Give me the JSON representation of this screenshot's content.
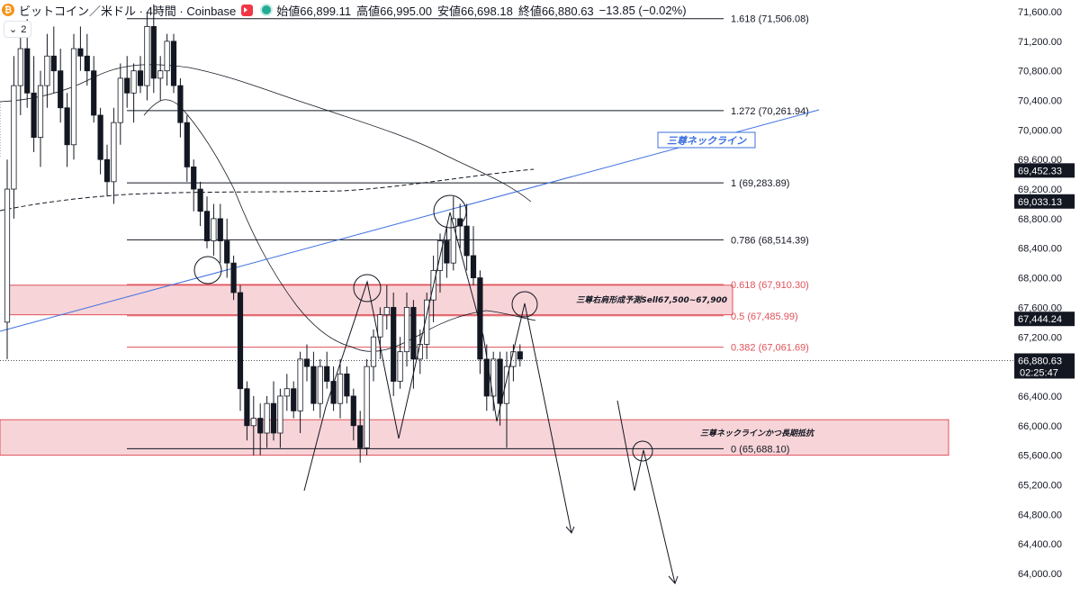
{
  "header": {
    "symbol": "ビットコイン／米ドル · 4時間 · Coinbase",
    "open": "始値66,899.11",
    "high": "高値66,995.00",
    "low": "安値66,698.18",
    "close": "終値66,880.63",
    "change": "−13.85 (−0.02%)",
    "indicator_count": "2"
  },
  "price_axis": {
    "ticks": [
      "71,600.00",
      "71,200.00",
      "70,800.00",
      "70,400.00",
      "70,000.00",
      "69,600.00",
      "69,200.00",
      "68,800.00",
      "68,400.00",
      "68,000.00",
      "67,600.00",
      "67,200.00",
      "66,400.00",
      "66,000.00",
      "65,600.00",
      "65,200.00",
      "64,800.00",
      "64,400.00",
      "64,000.00"
    ],
    "badges": [
      {
        "price": 69452.33,
        "label": "69,452.33"
      },
      {
        "price": 69033.13,
        "label": "69,033.13"
      },
      {
        "price": 67444.24,
        "label": "67,444.24"
      }
    ],
    "last_price": {
      "price": 66880.63,
      "label": "66,880.63",
      "countdown": "02:25:47"
    }
  },
  "fib_levels": [
    {
      "price": 71506.08,
      "label": "1.618 (71,506.08)",
      "color": "#131722"
    },
    {
      "price": 70261.94,
      "label": "1.272 (70,261.94)",
      "color": "#131722"
    },
    {
      "price": 69283.89,
      "label": "1 (69,283.89)",
      "color": "#131722"
    },
    {
      "price": 68514.39,
      "label": "0.786 (68,514.39)",
      "color": "#131722"
    },
    {
      "price": 67910.3,
      "label": "0.618 (67,910.30)",
      "color": "#e0525a"
    },
    {
      "price": 67485.99,
      "label": "0.5 (67,485.99)",
      "color": "#e0525a"
    },
    {
      "price": 67061.69,
      "label": "0.382 (67,061.69)",
      "color": "#e0525a"
    },
    {
      "price": 65688.1,
      "label": "0 (65,688.10)",
      "color": "#131722"
    }
  ],
  "zones": [
    {
      "top": 67900,
      "bottom": 67500,
      "label": "三尊右肩形成予測Sell67,500~67,900"
    },
    {
      "top": 66080,
      "bottom": 65600,
      "label": "三尊ネックラインかつ長期抵抗"
    }
  ],
  "neckline_label": "三尊ネックライン",
  "colors": {
    "up": "#ffffff",
    "down": "#131722",
    "neckline": "#3d6fe0",
    "zone_fill": "#f7d4d8",
    "zone_border": "#e0525a"
  },
  "chart_data": {
    "type": "candlestick",
    "title": "ビットコイン／米ドル · 4時間 · Coinbase",
    "ylim": [
      63930,
      71720
    ],
    "candles": [
      [
        67400,
        69600,
        66900,
        69200
      ],
      [
        69200,
        71000,
        68800,
        70600
      ],
      [
        70600,
        71400,
        70200,
        71100
      ],
      [
        71100,
        71500,
        70300,
        70500
      ],
      [
        70500,
        71000,
        69700,
        69900
      ],
      [
        69900,
        70800,
        69500,
        70600
      ],
      [
        70600,
        71300,
        70300,
        71000
      ],
      [
        71000,
        71400,
        70500,
        70800
      ],
      [
        70800,
        71100,
        70100,
        70300
      ],
      [
        70300,
        70500,
        69500,
        69800
      ],
      [
        69800,
        71300,
        69600,
        71100
      ],
      [
        71100,
        71400,
        70800,
        71000
      ],
      [
        71000,
        71300,
        70600,
        70800
      ],
      [
        70800,
        71000,
        70100,
        70200
      ],
      [
        70200,
        70300,
        69400,
        69600
      ],
      [
        69600,
        69800,
        69100,
        69300
      ],
      [
        69300,
        70300,
        69000,
        70100
      ],
      [
        70100,
        70900,
        69800,
        70700
      ],
      [
        70700,
        71000,
        70300,
        70500
      ],
      [
        70500,
        70900,
        70100,
        70800
      ],
      [
        70800,
        71000,
        70500,
        70600
      ],
      [
        70600,
        71600,
        70400,
        71400
      ],
      [
        71400,
        71700,
        70500,
        70700
      ],
      [
        70700,
        71000,
        70400,
        70800
      ],
      [
        70800,
        71300,
        70600,
        71200
      ],
      [
        71200,
        71300,
        70500,
        70600
      ],
      [
        70600,
        70700,
        69900,
        70100
      ],
      [
        70100,
        70200,
        69300,
        69500
      ],
      [
        69500,
        69600,
        68900,
        69200
      ],
      [
        69200,
        69300,
        68700,
        68900
      ],
      [
        68900,
        69100,
        68400,
        68500
      ],
      [
        68500,
        69000,
        68300,
        68800
      ],
      [
        68800,
        69000,
        68200,
        68500
      ],
      [
        68500,
        68800,
        68000,
        68200
      ],
      [
        68200,
        68300,
        67700,
        67800
      ],
      [
        67800,
        67900,
        66200,
        66500
      ],
      [
        66500,
        66600,
        65800,
        66000
      ],
      [
        66000,
        66400,
        65600,
        66100
      ],
      [
        66100,
        66300,
        65600,
        65900
      ],
      [
        65900,
        66400,
        65700,
        66300
      ],
      [
        66300,
        66600,
        65800,
        65900
      ],
      [
        65900,
        66500,
        65700,
        66400
      ],
      [
        66400,
        66700,
        66200,
        66500
      ],
      [
        66500,
        66600,
        66100,
        66200
      ],
      [
        66200,
        67000,
        65900,
        66900
      ],
      [
        66900,
        67100,
        66600,
        66800
      ],
      [
        66800,
        67000,
        66200,
        66300
      ],
      [
        66300,
        66900,
        66100,
        66800
      ],
      [
        66800,
        67000,
        66500,
        66600
      ],
      [
        66600,
        66800,
        66200,
        66300
      ],
      [
        66300,
        66900,
        66100,
        66700
      ],
      [
        66700,
        66800,
        66300,
        66400
      ],
      [
        66400,
        66500,
        65800,
        66000
      ],
      [
        66000,
        66200,
        65500,
        65700
      ],
      [
        65700,
        66900,
        65600,
        66800
      ],
      [
        66800,
        67300,
        66600,
        67200
      ],
      [
        67200,
        67600,
        66900,
        67500
      ],
      [
        67500,
        67900,
        67300,
        67600
      ],
      [
        67600,
        67800,
        66400,
        66600
      ],
      [
        66600,
        67200,
        66500,
        67000
      ],
      [
        67000,
        67800,
        66800,
        67600
      ],
      [
        67600,
        67700,
        66500,
        66900
      ],
      [
        66900,
        67300,
        66700,
        67100
      ],
      [
        67100,
        67800,
        66900,
        67700
      ],
      [
        67700,
        68300,
        67400,
        68100
      ],
      [
        68100,
        68600,
        67800,
        68500
      ],
      [
        68500,
        68700,
        68000,
        68200
      ],
      [
        68200,
        69100,
        68100,
        68800
      ],
      [
        68800,
        69000,
        68400,
        68700
      ],
      [
        68700,
        69000,
        68100,
        68300
      ],
      [
        68300,
        68700,
        67900,
        68000
      ],
      [
        68000,
        68100,
        66700,
        66900
      ],
      [
        66900,
        67100,
        66200,
        66400
      ],
      [
        66400,
        67000,
        66200,
        66900
      ],
      [
        66900,
        67000,
        66000,
        66300
      ],
      [
        66300,
        67000,
        65700,
        66800
      ],
      [
        66800,
        67100,
        66600,
        67000
      ],
      [
        67000,
        67100,
        66800,
        66900
      ]
    ]
  }
}
